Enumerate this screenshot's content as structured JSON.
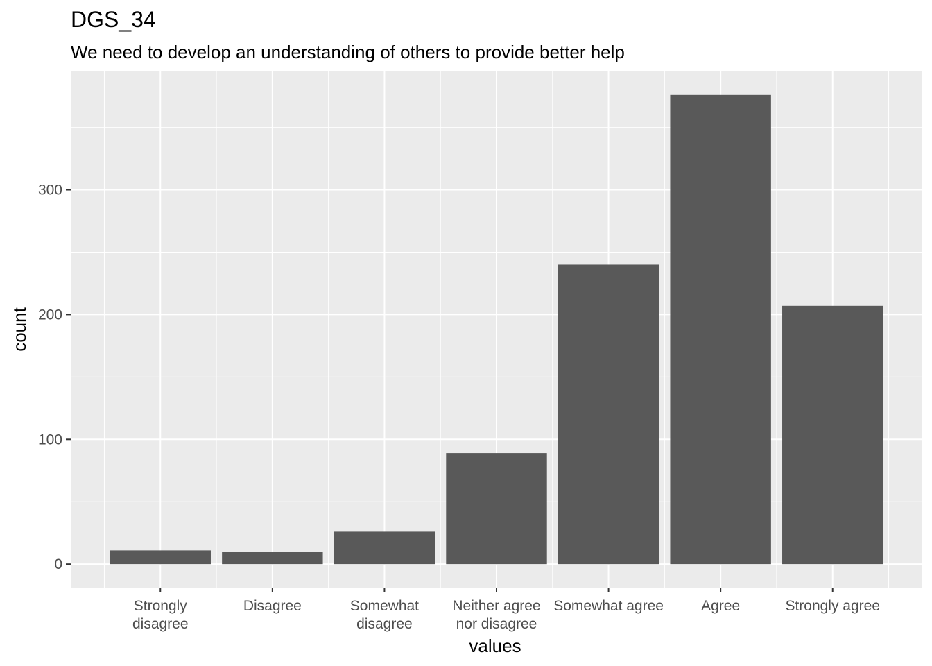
{
  "chart_data": {
    "type": "bar",
    "title": "DGS_34",
    "subtitle": "We need to develop an understanding of others to provide better help",
    "xlabel": "values",
    "ylabel": "count",
    "categories": [
      [
        "Strongly",
        "disagree"
      ],
      [
        "Disagree"
      ],
      [
        "Somewhat",
        "disagree"
      ],
      [
        "Neither agree",
        "nor disagree"
      ],
      [
        "Somewhat agree"
      ],
      [
        "Agree"
      ],
      [
        "Strongly agree"
      ]
    ],
    "values": [
      11,
      10,
      26,
      89,
      240,
      376,
      207
    ],
    "ylim": [
      -18.8,
      394.8
    ],
    "yticks": [
      0,
      100,
      200,
      300
    ],
    "grid": true,
    "colors": {
      "panel_background": "#ebebeb",
      "grid_major": "#ffffff",
      "bar_fill": "#595959",
      "tick_text": "#4d4d4d"
    }
  }
}
